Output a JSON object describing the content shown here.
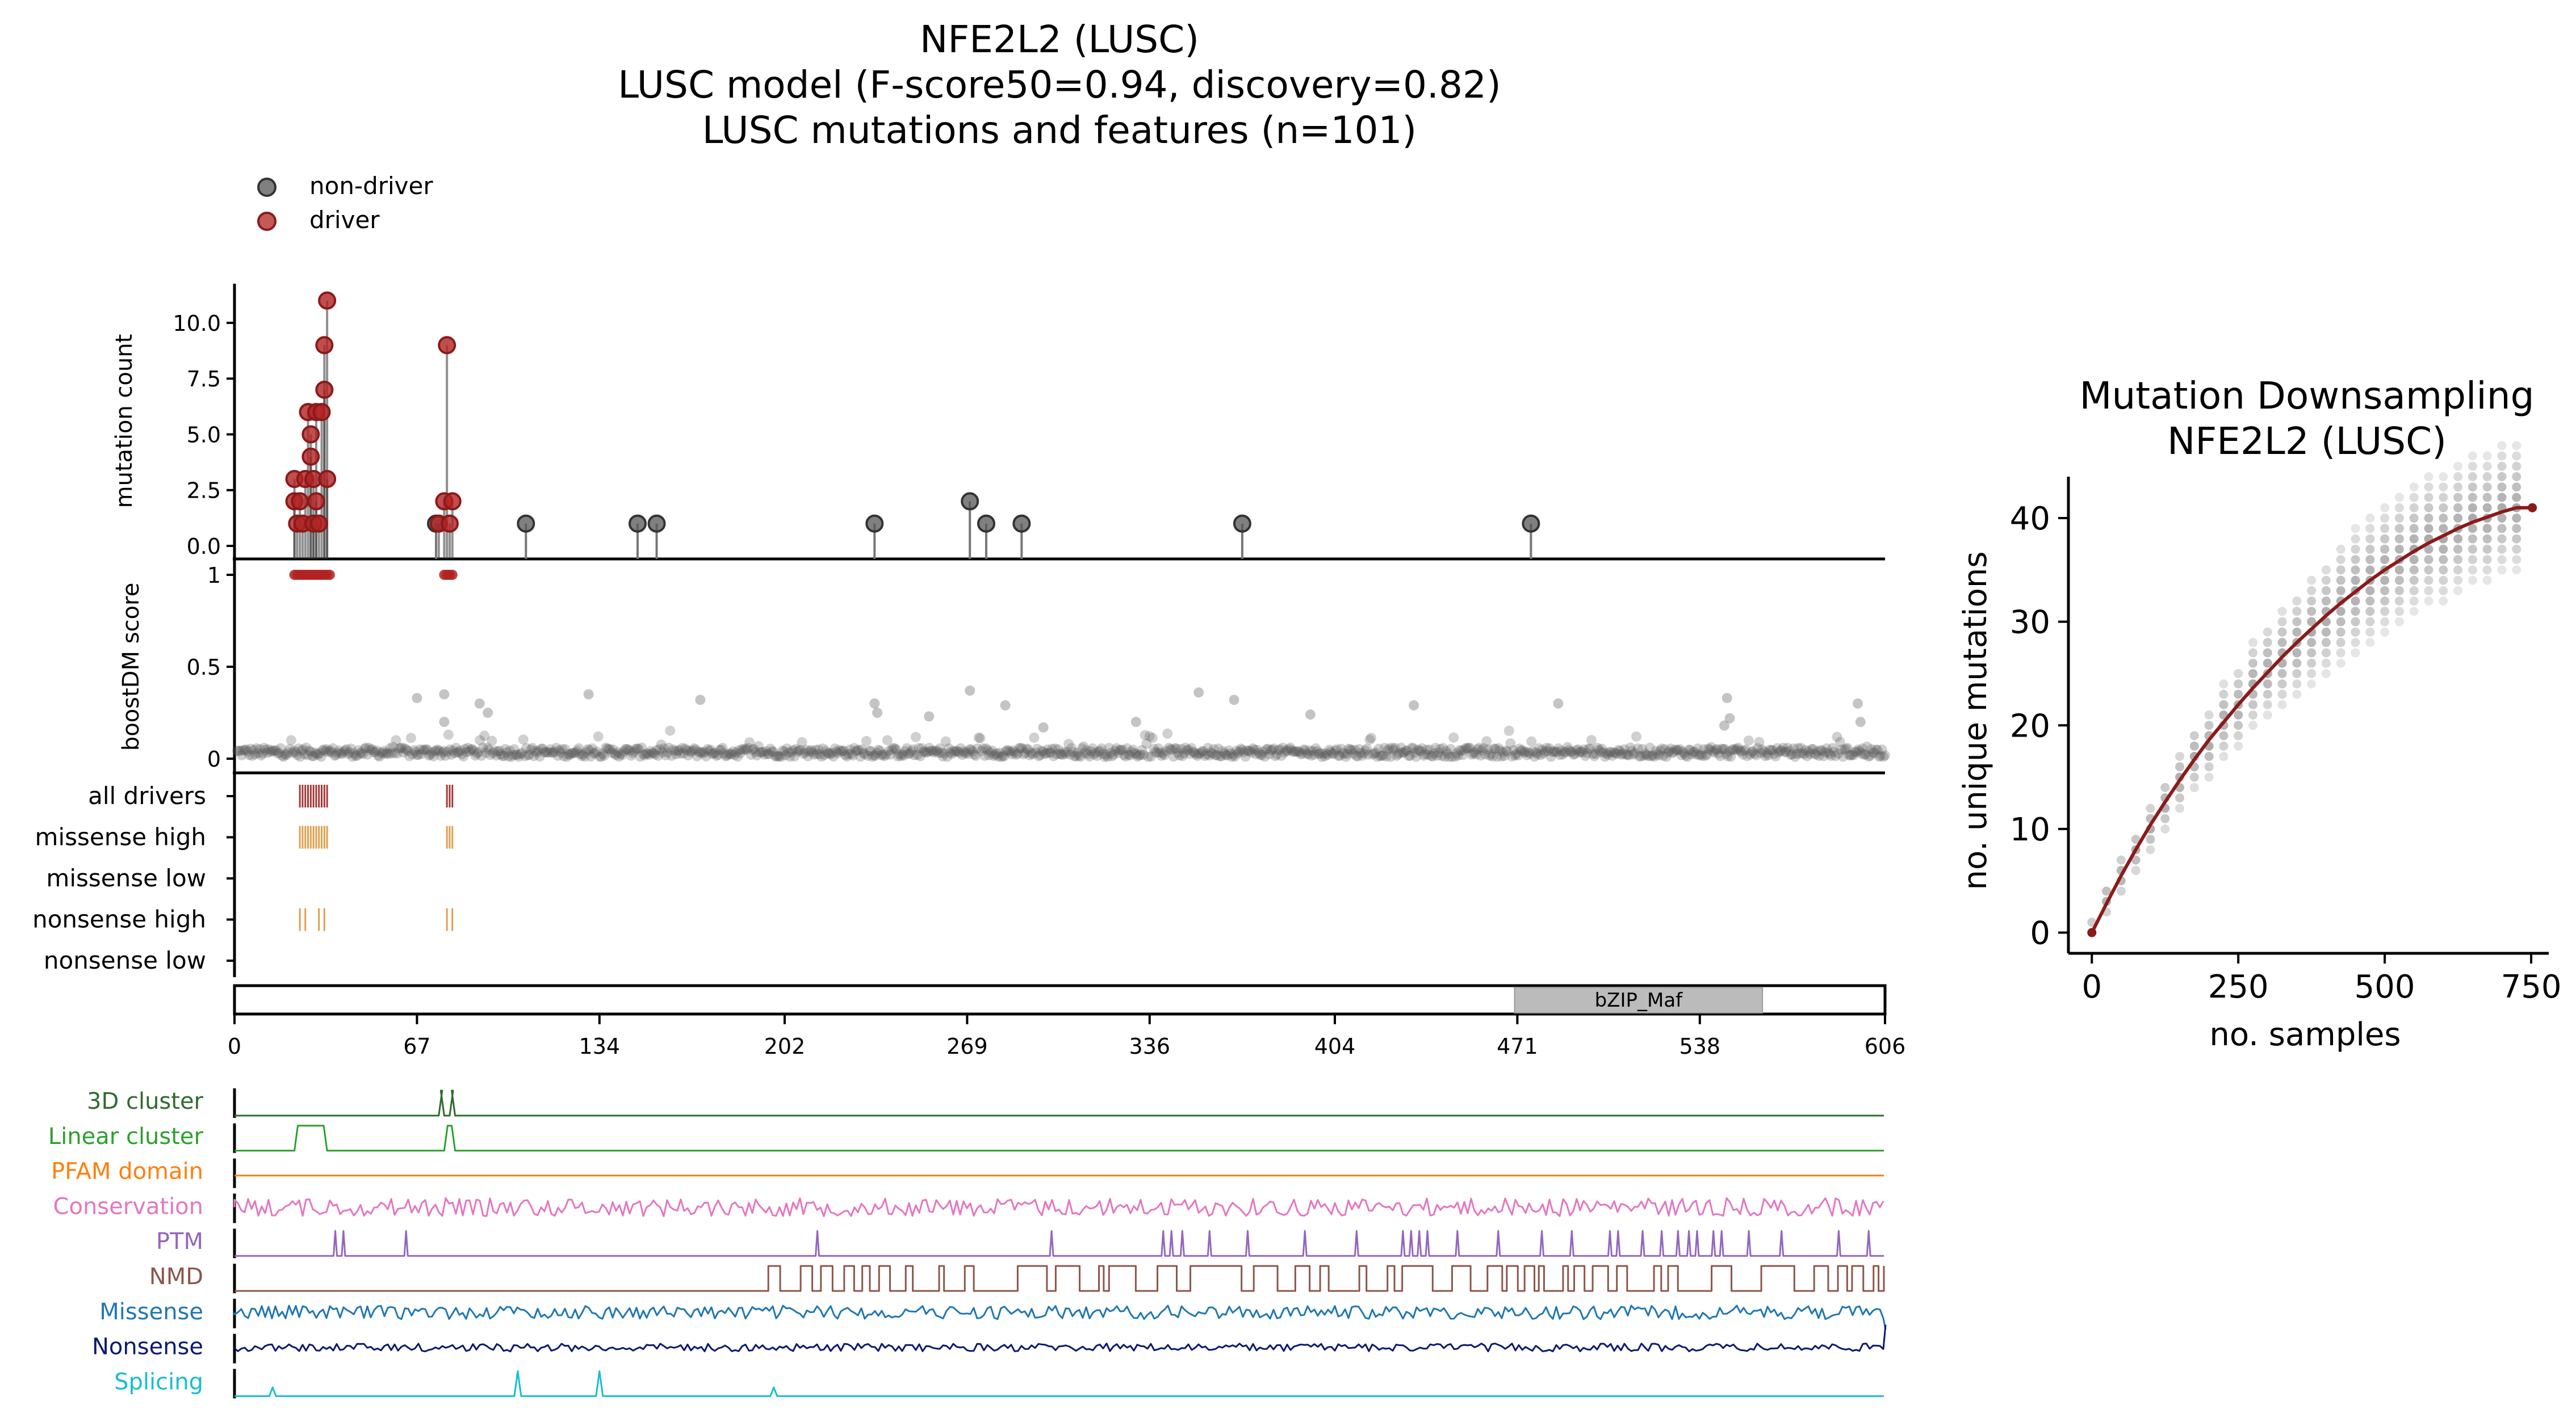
{
  "titles": {
    "main": [
      "NFE2L2 (LUSC)",
      "LUSC model (F-score50=0.94, discovery=0.82)",
      "LUSC mutations and features (n=101)"
    ],
    "downsampling": [
      "Mutation Downsampling",
      "NFE2L2 (LUSC)"
    ]
  },
  "legend": {
    "position": "top-left",
    "items": [
      {
        "label": "non-driver",
        "color": "#555555"
      },
      {
        "label": "driver",
        "color": "#b22222"
      }
    ]
  },
  "colors": {
    "driver": "#b22222",
    "nondriver": "#555555",
    "track_tick": "#e0a050",
    "alldrivers_tick": "#a33a3a",
    "fit_line": "#8b1a1a",
    "domain_fill": "#bbbbbb"
  },
  "chart_data": [
    {
      "type": "scatter",
      "name": "needle-plot",
      "ylabel": "mutation count",
      "yticks": [
        "0.0",
        "2.5",
        "5.0",
        "7.5",
        "10.0"
      ],
      "ylim": [
        0,
        11.5
      ],
      "xlim": [
        0,
        606
      ],
      "drivers": [
        {
          "x": 22,
          "y": 3
        },
        {
          "x": 22,
          "y": 2
        },
        {
          "x": 23,
          "y": 1
        },
        {
          "x": 24,
          "y": 2
        },
        {
          "x": 25,
          "y": 1
        },
        {
          "x": 26,
          "y": 3
        },
        {
          "x": 27,
          "y": 6
        },
        {
          "x": 28,
          "y": 5
        },
        {
          "x": 28,
          "y": 4
        },
        {
          "x": 29,
          "y": 3
        },
        {
          "x": 29,
          "y": 1
        },
        {
          "x": 30,
          "y": 6
        },
        {
          "x": 30,
          "y": 2
        },
        {
          "x": 31,
          "y": 1
        },
        {
          "x": 32,
          "y": 6
        },
        {
          "x": 33,
          "y": 7
        },
        {
          "x": 33,
          "y": 9
        },
        {
          "x": 34,
          "y": 11
        },
        {
          "x": 34,
          "y": 3
        },
        {
          "x": 75,
          "y": 1
        },
        {
          "x": 77,
          "y": 2
        },
        {
          "x": 78,
          "y": 9
        },
        {
          "x": 79,
          "y": 1
        },
        {
          "x": 80,
          "y": 2
        }
      ],
      "nondrivers": [
        {
          "x": 74,
          "y": 1
        },
        {
          "x": 107,
          "y": 1
        },
        {
          "x": 148,
          "y": 1
        },
        {
          "x": 155,
          "y": 1
        },
        {
          "x": 235,
          "y": 1
        },
        {
          "x": 270,
          "y": 2
        },
        {
          "x": 276,
          "y": 1
        },
        {
          "x": 289,
          "y": 1
        },
        {
          "x": 370,
          "y": 1
        },
        {
          "x": 476,
          "y": 1
        }
      ]
    },
    {
      "type": "scatter",
      "name": "boostdm-score",
      "ylabel": "boostDM score",
      "yticks": [
        "0",
        "0.5",
        "1"
      ],
      "ylim": [
        0,
        1
      ],
      "xlim": [
        0,
        606
      ],
      "drivers_x": [
        22,
        23,
        24,
        25,
        26,
        27,
        28,
        29,
        30,
        31,
        32,
        33,
        34,
        35,
        77,
        78,
        79,
        80
      ],
      "drivers_y": 1,
      "highlight_points": [
        {
          "x": 67,
          "y": 0.33
        },
        {
          "x": 77,
          "y": 0.35
        },
        {
          "x": 77,
          "y": 0.2
        },
        {
          "x": 90,
          "y": 0.3
        },
        {
          "x": 93,
          "y": 0.25
        },
        {
          "x": 130,
          "y": 0.35
        },
        {
          "x": 171,
          "y": 0.32
        },
        {
          "x": 235,
          "y": 0.3
        },
        {
          "x": 236,
          "y": 0.25
        },
        {
          "x": 255,
          "y": 0.23
        },
        {
          "x": 270,
          "y": 0.37
        },
        {
          "x": 283,
          "y": 0.29
        },
        {
          "x": 297,
          "y": 0.17
        },
        {
          "x": 331,
          "y": 0.2
        },
        {
          "x": 354,
          "y": 0.36
        },
        {
          "x": 367,
          "y": 0.32
        },
        {
          "x": 395,
          "y": 0.24
        },
        {
          "x": 433,
          "y": 0.29
        },
        {
          "x": 486,
          "y": 0.3
        },
        {
          "x": 547,
          "y": 0.18
        },
        {
          "x": 548,
          "y": 0.33
        },
        {
          "x": 549,
          "y": 0.22
        },
        {
          "x": 596,
          "y": 0.3
        },
        {
          "x": 597,
          "y": 0.2
        }
      ]
    },
    {
      "type": "table",
      "name": "driver-tracks",
      "rows": [
        {
          "label": "all drivers",
          "x": [
            24,
            25,
            26,
            27,
            28,
            29,
            30,
            31,
            32,
            33,
            34,
            78,
            79,
            80
          ]
        },
        {
          "label": "missense high",
          "x": [
            24,
            25,
            26,
            27,
            28,
            29,
            30,
            31,
            32,
            33,
            34,
            78,
            79,
            80
          ]
        },
        {
          "label": "missense low",
          "x": []
        },
        {
          "label": "nonsense high",
          "x": [
            24,
            26,
            31,
            33,
            78,
            80
          ]
        },
        {
          "label": "nonsense low",
          "x": []
        }
      ]
    },
    {
      "type": "bar",
      "name": "protein-domains",
      "xticks": [
        "0",
        "67",
        "134",
        "202",
        "269",
        "336",
        "404",
        "471",
        "538",
        "606"
      ],
      "xlim": [
        0,
        606
      ],
      "domains": [
        {
          "label": "bZIP_Maf",
          "start": 470,
          "end": 561
        }
      ]
    },
    {
      "type": "line",
      "name": "feature-tracks",
      "xlim": [
        0,
        606
      ],
      "tracks": [
        {
          "label": "3D cluster",
          "color": "#2e6b2e",
          "kind": "pulse",
          "intervals": [
            [
              75,
              77
            ],
            [
              79,
              81
            ]
          ]
        },
        {
          "label": "Linear cluster",
          "color": "#2ca02c",
          "kind": "pulse",
          "intervals": [
            [
              22,
              34
            ],
            [
              77,
              81
            ]
          ]
        },
        {
          "label": "PFAM domain",
          "color": "#ff7f0e",
          "kind": "flat"
        },
        {
          "label": "Conservation",
          "color": "#e377c2",
          "kind": "noise"
        },
        {
          "label": "PTM",
          "color": "#9467bd",
          "kind": "spikes",
          "positions": [
            37,
            40,
            63,
            214,
            300,
            341,
            344,
            348,
            358,
            372,
            393,
            412,
            429,
            432,
            435,
            438,
            449,
            464,
            480,
            491,
            505,
            508,
            517,
            524,
            530,
            534,
            537,
            543,
            546,
            556,
            568,
            589,
            600
          ]
        },
        {
          "label": "NMD",
          "color": "#8c564b",
          "kind": "nmd",
          "start": 196
        },
        {
          "label": "Missense",
          "color": "#1f77b4",
          "kind": "noise"
        },
        {
          "label": "Nonsense",
          "color": "#0b1a6e",
          "kind": "noise"
        },
        {
          "label": "Splicing",
          "color": "#17becf",
          "kind": "peaks",
          "positions": [
            14,
            104,
            134,
            198
          ]
        }
      ]
    },
    {
      "type": "scatter",
      "name": "mutation-downsampling",
      "title": "Mutation Downsampling\nNFE2L2 (LUSC)",
      "xlabel": "no. samples",
      "ylabel": "no. unique mutations",
      "xlim": [
        -40,
        780
      ],
      "ylim": [
        -2,
        44
      ],
      "xticks": [
        0,
        250,
        500,
        750
      ],
      "yticks": [
        0,
        10,
        20,
        30,
        40
      ],
      "sample_sizes": [
        0,
        25,
        50,
        75,
        100,
        125,
        150,
        175,
        200,
        225,
        250,
        275,
        300,
        325,
        350,
        375,
        400,
        425,
        450,
        475,
        500,
        525,
        550,
        575,
        600,
        625,
        650,
        675,
        700,
        725
      ],
      "mean_curve": [
        0,
        2.8,
        5.5,
        8,
        10.4,
        12.6,
        14.7,
        16.7,
        18.6,
        20.3,
        22,
        23.6,
        25.1,
        26.6,
        28,
        29.3,
        30.6,
        31.8,
        32.9,
        34,
        35,
        35.9,
        36.8,
        37.6,
        38.3,
        39,
        39.6,
        40.1,
        40.6,
        41
      ]
    }
  ]
}
